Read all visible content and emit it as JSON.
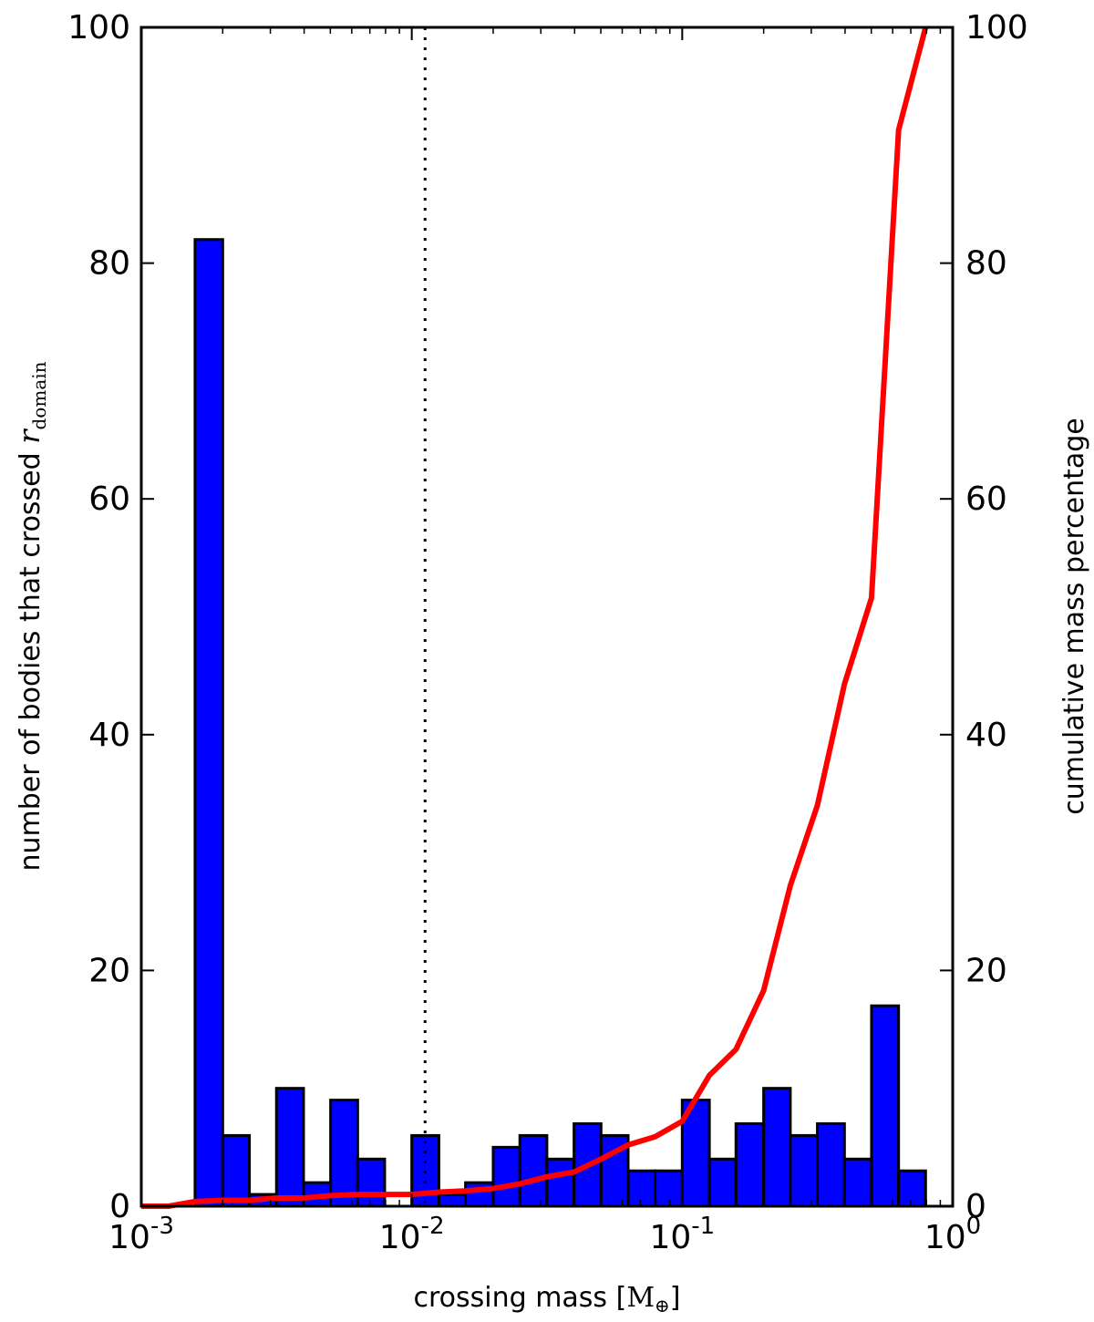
{
  "chart_data": {
    "type": "bar",
    "x_scale": "log",
    "xlim": [
      0.001,
      1
    ],
    "ylim_left": [
      0,
      100
    ],
    "ylim_right": [
      0,
      100
    ],
    "grid": false,
    "xlabel": "crossing mass [",
    "xlabel_math": "M",
    "xlabel_sub": "⊕",
    "xlabel_close": "]",
    "ylabel_left": "number of bodies that crossed ",
    "ylabel_left_math": "r",
    "ylabel_left_sub": "domain",
    "ylabel_right": "cumulative mass percentage",
    "x_ticks": [
      {
        "value": 0.001,
        "base": "10",
        "exp": "-3"
      },
      {
        "value": 0.01,
        "base": "10",
        "exp": "-2"
      },
      {
        "value": 0.1,
        "base": "10",
        "exp": "-1"
      },
      {
        "value": 1,
        "base": "10",
        "exp": "0"
      }
    ],
    "y_left_ticks": [
      "0",
      "20",
      "40",
      "60",
      "80",
      "100"
    ],
    "y_right_ticks": [
      "0",
      "20",
      "40",
      "60",
      "80",
      "100"
    ],
    "threshold_line_x": 0.0112,
    "colors": {
      "bars": "#0000ff",
      "bar_edge": "#000000",
      "cumulative": "#ff0000",
      "threshold": "#000000"
    },
    "series": [
      {
        "kind": "histogram",
        "axis": "left",
        "bins": [
          {
            "x0": 0.001,
            "x1": 0.00126,
            "count": 0
          },
          {
            "x0": 0.00126,
            "x1": 0.00158,
            "count": 0
          },
          {
            "x0": 0.00158,
            "x1": 0.002,
            "count": 82
          },
          {
            "x0": 0.002,
            "x1": 0.00251,
            "count": 6
          },
          {
            "x0": 0.00251,
            "x1": 0.00316,
            "count": 1
          },
          {
            "x0": 0.00316,
            "x1": 0.00398,
            "count": 10
          },
          {
            "x0": 0.00398,
            "x1": 0.00501,
            "count": 2
          },
          {
            "x0": 0.00501,
            "x1": 0.00631,
            "count": 9
          },
          {
            "x0": 0.00631,
            "x1": 0.00794,
            "count": 4
          },
          {
            "x0": 0.00794,
            "x1": 0.01,
            "count": 0
          },
          {
            "x0": 0.01,
            "x1": 0.0126,
            "count": 6
          },
          {
            "x0": 0.0126,
            "x1": 0.0158,
            "count": 1
          },
          {
            "x0": 0.0158,
            "x1": 0.02,
            "count": 2
          },
          {
            "x0": 0.02,
            "x1": 0.0251,
            "count": 5
          },
          {
            "x0": 0.0251,
            "x1": 0.0316,
            "count": 6
          },
          {
            "x0": 0.0316,
            "x1": 0.0398,
            "count": 4
          },
          {
            "x0": 0.0398,
            "x1": 0.0501,
            "count": 7
          },
          {
            "x0": 0.0501,
            "x1": 0.0631,
            "count": 6
          },
          {
            "x0": 0.0631,
            "x1": 0.0794,
            "count": 3
          },
          {
            "x0": 0.0794,
            "x1": 0.1,
            "count": 3
          },
          {
            "x0": 0.1,
            "x1": 0.126,
            "count": 9
          },
          {
            "x0": 0.126,
            "x1": 0.158,
            "count": 4
          },
          {
            "x0": 0.158,
            "x1": 0.2,
            "count": 7
          },
          {
            "x0": 0.2,
            "x1": 0.251,
            "count": 10
          },
          {
            "x0": 0.251,
            "x1": 0.316,
            "count": 6
          },
          {
            "x0": 0.316,
            "x1": 0.398,
            "count": 7
          },
          {
            "x0": 0.398,
            "x1": 0.501,
            "count": 4
          },
          {
            "x0": 0.501,
            "x1": 0.631,
            "count": 17
          },
          {
            "x0": 0.631,
            "x1": 0.794,
            "count": 3
          }
        ]
      },
      {
        "kind": "line",
        "axis": "right",
        "points": [
          {
            "x": 0.001,
            "y": 0
          },
          {
            "x": 0.00126,
            "y": 0
          },
          {
            "x": 0.00158,
            "y": 0.4
          },
          {
            "x": 0.002,
            "y": 0.5
          },
          {
            "x": 0.00251,
            "y": 0.5
          },
          {
            "x": 0.00316,
            "y": 0.7
          },
          {
            "x": 0.00398,
            "y": 0.7
          },
          {
            "x": 0.00501,
            "y": 0.9
          },
          {
            "x": 0.00631,
            "y": 1.0
          },
          {
            "x": 0.00794,
            "y": 1.0
          },
          {
            "x": 0.01,
            "y": 1.0
          },
          {
            "x": 0.0126,
            "y": 1.2
          },
          {
            "x": 0.0158,
            "y": 1.3
          },
          {
            "x": 0.02,
            "y": 1.5
          },
          {
            "x": 0.0251,
            "y": 1.9
          },
          {
            "x": 0.0316,
            "y": 2.5
          },
          {
            "x": 0.0398,
            "y": 2.9
          },
          {
            "x": 0.0501,
            "y": 4.0
          },
          {
            "x": 0.0631,
            "y": 5.2
          },
          {
            "x": 0.0794,
            "y": 5.9
          },
          {
            "x": 0.1,
            "y": 7.2
          },
          {
            "x": 0.126,
            "y": 11.1
          },
          {
            "x": 0.158,
            "y": 13.3
          },
          {
            "x": 0.2,
            "y": 18.3
          },
          {
            "x": 0.251,
            "y": 27.2
          },
          {
            "x": 0.316,
            "y": 34.0
          },
          {
            "x": 0.398,
            "y": 44.3
          },
          {
            "x": 0.501,
            "y": 51.6
          },
          {
            "x": 0.631,
            "y": 91.3
          },
          {
            "x": 0.794,
            "y": 100
          }
        ]
      }
    ]
  }
}
